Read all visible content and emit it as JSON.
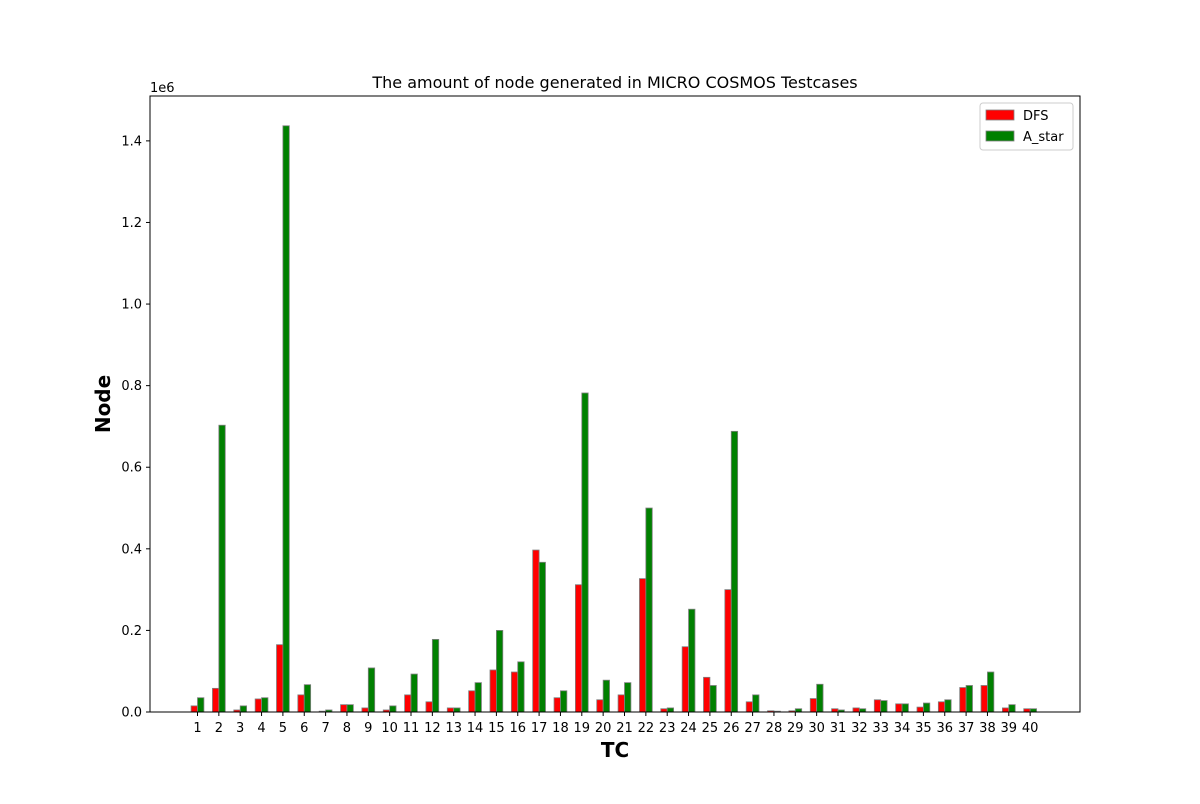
{
  "chart_data": {
    "type": "bar",
    "title": "The amount of node generated in MICRO COSMOS Testcases",
    "xlabel": "TC",
    "ylabel": "Node",
    "y_offset_label": "1e6",
    "ylim": [
      0,
      1.51
    ],
    "y_ticks": [
      0.0,
      0.2,
      0.4,
      0.6,
      0.8,
      1.0,
      1.2,
      1.4
    ],
    "y_tick_labels": [
      "0.0",
      "0.2",
      "0.4",
      "0.6",
      "0.8",
      "1.0",
      "1.2",
      "1.4"
    ],
    "grid": false,
    "legend_position": "top-right",
    "categories": [
      "1",
      "2",
      "3",
      "4",
      "5",
      "6",
      "7",
      "8",
      "9",
      "10",
      "11",
      "12",
      "13",
      "14",
      "15",
      "16",
      "17",
      "18",
      "19",
      "20",
      "21",
      "22",
      "23",
      "24",
      "25",
      "26",
      "27",
      "28",
      "29",
      "30",
      "31",
      "32",
      "33",
      "34",
      "35",
      "36",
      "37",
      "38",
      "39",
      "40"
    ],
    "series": [
      {
        "name": "DFS",
        "color": "#ff0000",
        "values": [
          0.015,
          0.058,
          0.005,
          0.032,
          0.165,
          0.042,
          0.002,
          0.018,
          0.01,
          0.005,
          0.042,
          0.025,
          0.01,
          0.052,
          0.103,
          0.098,
          0.397,
          0.035,
          0.312,
          0.03,
          0.042,
          0.327,
          0.008,
          0.16,
          0.085,
          0.3,
          0.025,
          0.003,
          0.003,
          0.033,
          0.008,
          0.01,
          0.03,
          0.02,
          0.012,
          0.025,
          0.06,
          0.065,
          0.01,
          0.008
        ]
      },
      {
        "name": "A_star",
        "color": "#008000",
        "values": [
          0.035,
          0.703,
          0.015,
          0.035,
          1.437,
          0.067,
          0.005,
          0.018,
          0.108,
          0.015,
          0.093,
          0.178,
          0.01,
          0.072,
          0.2,
          0.123,
          0.367,
          0.052,
          0.782,
          0.078,
          0.072,
          0.5,
          0.01,
          0.252,
          0.065,
          0.688,
          0.042,
          0.002,
          0.008,
          0.068,
          0.005,
          0.008,
          0.028,
          0.02,
          0.022,
          0.03,
          0.065,
          0.098,
          0.018,
          0.008
        ]
      }
    ]
  }
}
